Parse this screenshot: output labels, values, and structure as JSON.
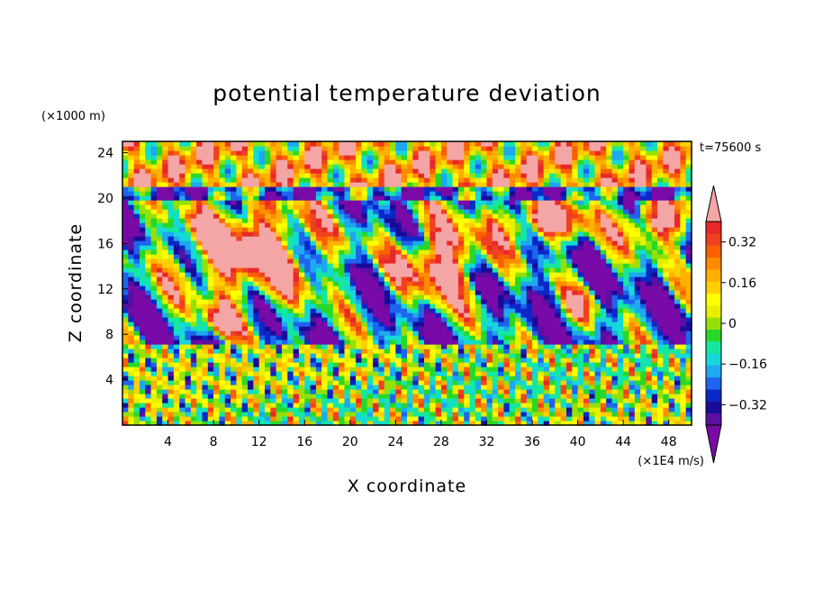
{
  "chart_data": {
    "type": "heatmap",
    "title": "potential temperature deviation",
    "xlabel": "X coordinate",
    "ylabel": "Z coordinate",
    "x_unit": "(×1E4 m/s)",
    "y_unit": "(×1000 m)",
    "time_label": "t=75600 s",
    "xlim": [
      0,
      50
    ],
    "ylim": [
      0,
      25
    ],
    "x_ticks": [
      4,
      8,
      12,
      16,
      20,
      24,
      28,
      32,
      36,
      40,
      44,
      48
    ],
    "y_ticks": [
      4,
      8,
      12,
      16,
      20,
      24
    ],
    "colorbar": {
      "levels": [
        -0.4,
        -0.36,
        -0.32,
        -0.28,
        -0.24,
        -0.2,
        -0.16,
        -0.12,
        -0.08,
        -0.04,
        0,
        0.04,
        0.08,
        0.12,
        0.16,
        0.2,
        0.24,
        0.28,
        0.32,
        0.36,
        0.4
      ],
      "tick_labels": [
        "0.32",
        "0.16",
        "0",
        "−0.16",
        "−0.32"
      ],
      "tick_values": [
        0.32,
        0.16,
        0,
        -0.16,
        -0.32
      ],
      "under_color": "#7a0aa8",
      "over_color": "#f4a6a6",
      "colors": [
        "#5a0fa0",
        "#1a0a9a",
        "#0a28c8",
        "#1e64ee",
        "#1ea8f0",
        "#16d8d8",
        "#14e8a0",
        "#28d828",
        "#96e00a",
        "#e6f000",
        "#ffff00",
        "#ffd000",
        "#ffb000",
        "#ff8c00",
        "#f86000",
        "#f04020",
        "#e82828"
      ]
    }
  }
}
